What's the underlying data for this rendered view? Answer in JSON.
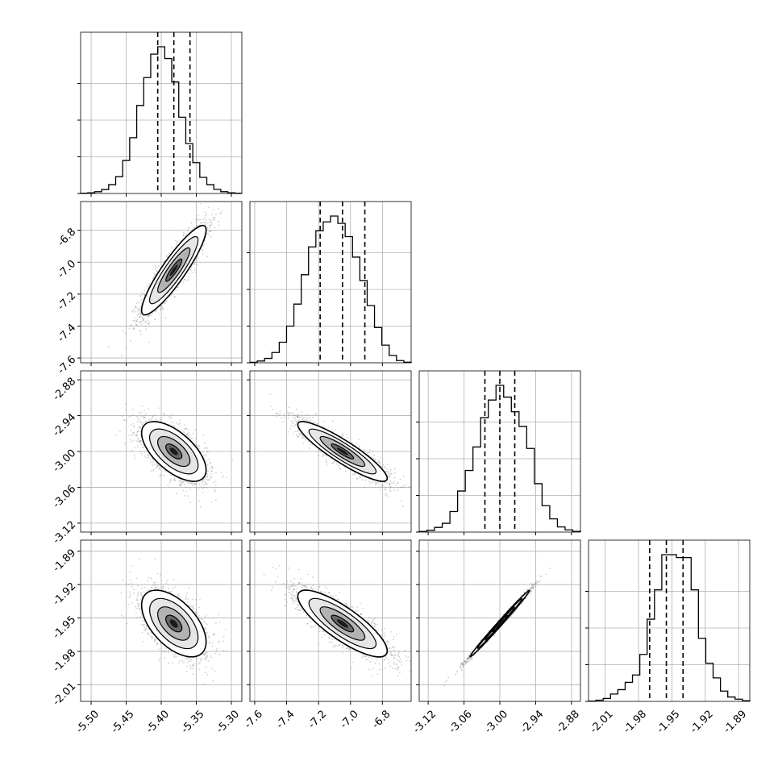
{
  "chart_data": {
    "type": "corner",
    "grid": true,
    "parameters": [
      {
        "ticks": [
          "-5.50",
          "-5.45",
          "-5.40",
          "-5.35",
          "-5.30"
        ],
        "range": [
          -5.515,
          -5.285
        ],
        "median": -5.382,
        "q16": -5.405,
        "q84": -5.359
      },
      {
        "ticks": [
          "-7.6",
          "-7.4",
          "-7.2",
          "-7.0",
          "-6.8"
        ],
        "range": [
          -7.63,
          -6.62
        ],
        "median": -7.05,
        "q16": -7.19,
        "q84": -6.91
      },
      {
        "ticks": [
          "-3.12",
          "-3.06",
          "-3.00",
          "-2.94",
          "-2.88"
        ],
        "range": [
          -3.135,
          -2.865
        ],
        "median": -3.0,
        "q16": -3.025,
        "q84": -2.975
      },
      {
        "ticks": [
          "-2.01",
          "-1.98",
          "-1.95",
          "-1.92",
          "-1.89"
        ],
        "range": [
          -2.025,
          -1.88
        ],
        "median": -1.955,
        "q16": -1.97,
        "q84": -1.94
      }
    ],
    "histograms": [
      {
        "bin_range": [
          -5.515,
          -5.285
        ],
        "counts": [
          0.2,
          0.5,
          1.2,
          2.7,
          6,
          11.5,
          22.5,
          38,
          60,
          79,
          95,
          100,
          92,
          76,
          52,
          34,
          21,
          11,
          6,
          2.8,
          1.2,
          0.5,
          0.2
        ]
      },
      {
        "bin_range": [
          -7.63,
          -6.62
        ],
        "counts": [
          0.3,
          1.2,
          3,
          7,
          14,
          25,
          40,
          60,
          79,
          90,
          96,
          100,
          95,
          86,
          72,
          56,
          39,
          24,
          12,
          5,
          1.5,
          0.4
        ]
      },
      {
        "bin_range": [
          -3.135,
          -2.865
        ],
        "counts": [
          0.4,
          1.2,
          3.2,
          6,
          14,
          28,
          42,
          58,
          78,
          90,
          100,
          92,
          82,
          72,
          57,
          33,
          18,
          9,
          3.5,
          1.5,
          0.5
        ]
      },
      {
        "bin_range": [
          -2.025,
          -1.88
        ],
        "counts": [
          0.2,
          0.8,
          2,
          5,
          8,
          13,
          18,
          32,
          56,
          76,
          100,
          100,
          98,
          98,
          76,
          43,
          26,
          16,
          7,
          3,
          1.5,
          0.5
        ]
      }
    ],
    "pairs": [
      {
        "row": 1,
        "col": 0,
        "corr": 0.9
      },
      {
        "row": 2,
        "col": 0,
        "corr": -0.62
      },
      {
        "row": 2,
        "col": 1,
        "corr": -0.9
      },
      {
        "row": 3,
        "col": 0,
        "corr": -0.55
      },
      {
        "row": 3,
        "col": 1,
        "corr": -0.82
      },
      {
        "row": 3,
        "col": 2,
        "corr": 0.995
      }
    ],
    "colors": {
      "line": "#000000",
      "grid": "#b0b0b0",
      "points": "#9a9a9a"
    }
  }
}
